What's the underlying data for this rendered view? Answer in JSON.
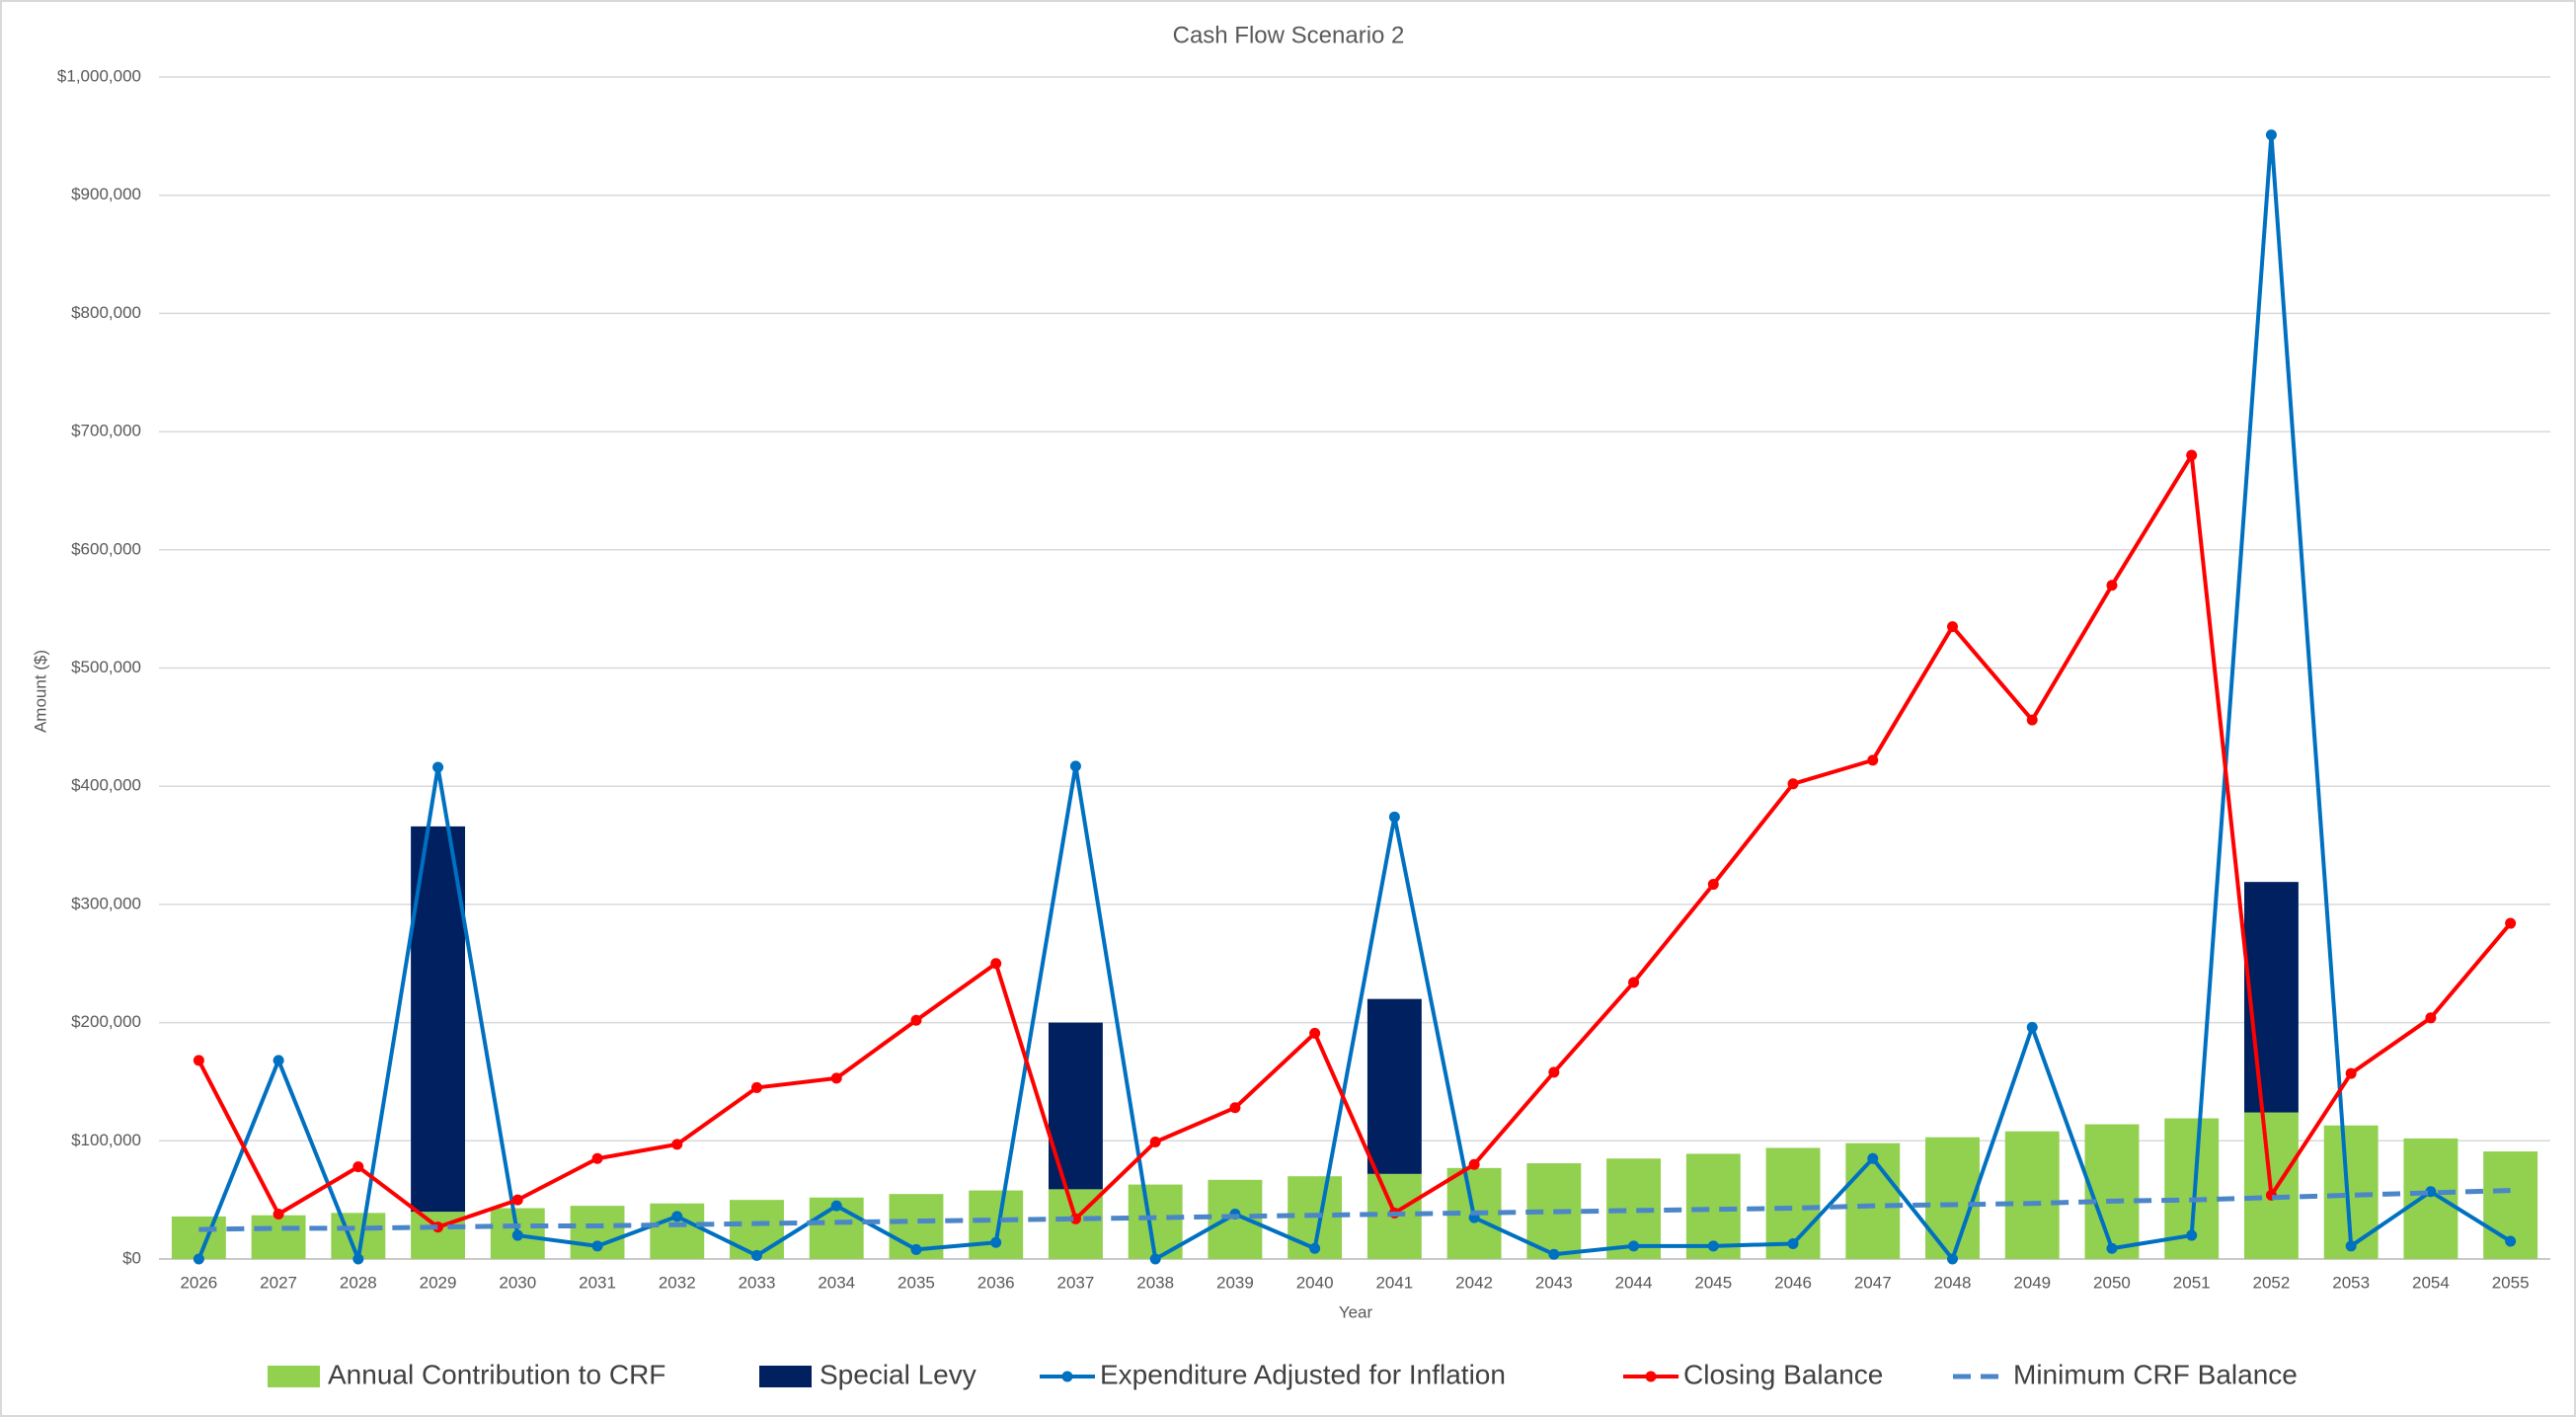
{
  "chart_data": {
    "type": "bar-line",
    "title": "Cash Flow Scenario 2",
    "x_label": "Year",
    "y_label": "Amount ($)",
    "categories": [
      "2026",
      "2027",
      "2028",
      "2029",
      "2030",
      "2031",
      "2032",
      "2033",
      "2034",
      "2035",
      "2036",
      "2037",
      "2038",
      "2039",
      "2040",
      "2041",
      "2042",
      "2043",
      "2044",
      "2045",
      "2046",
      "2047",
      "2048",
      "2049",
      "2050",
      "2051",
      "2052",
      "2053",
      "2054",
      "2055"
    ],
    "series": [
      {
        "name": "Annual Contribution to CRF",
        "kind": "bar",
        "color": "#92d050",
        "values": [
          36000,
          37000,
          39000,
          40000,
          43000,
          45000,
          47000,
          50000,
          52000,
          55000,
          58000,
          59000,
          63000,
          67000,
          70000,
          72000,
          77000,
          81000,
          85000,
          89000,
          94000,
          98000,
          103000,
          108000,
          114000,
          119000,
          124000,
          113000,
          102000,
          91000
        ]
      },
      {
        "name": "Special Levy",
        "kind": "stacked-bar",
        "color": "#002060",
        "values": [
          0,
          0,
          0,
          326000,
          0,
          0,
          0,
          0,
          0,
          0,
          0,
          141000,
          0,
          0,
          0,
          148000,
          0,
          0,
          0,
          0,
          0,
          0,
          0,
          0,
          0,
          0,
          195000,
          0,
          0,
          0
        ]
      },
      {
        "name": "Expenditure Adjusted for Inflation",
        "kind": "line",
        "color": "#0070c0",
        "values": [
          0,
          168000,
          0,
          416000,
          20000,
          11000,
          36000,
          3000,
          45000,
          8000,
          14000,
          417000,
          0,
          38000,
          9000,
          374000,
          35000,
          4000,
          11000,
          11000,
          13000,
          85000,
          0,
          196000,
          9000,
          20000,
          951000,
          11000,
          57000,
          15000
        ]
      },
      {
        "name": "Closing Balance",
        "kind": "line",
        "color": "#ff0000",
        "values": [
          168000,
          38000,
          78000,
          27000,
          50000,
          85000,
          97000,
          145000,
          153000,
          202000,
          250000,
          34000,
          99000,
          128000,
          191000,
          39000,
          80000,
          158000,
          234000,
          317000,
          402000,
          422000,
          535000,
          456000,
          570000,
          680000,
          54000,
          157000,
          204000,
          284000
        ]
      },
      {
        "name": "Minimum CRF Balance",
        "kind": "dashed-line",
        "color": "#4a86c8",
        "values": [
          25000,
          26000,
          26000,
          27000,
          28000,
          28000,
          29000,
          30000,
          31000,
          32000,
          33000,
          34000,
          35000,
          36000,
          37000,
          38000,
          39000,
          40000,
          41000,
          42000,
          43000,
          45000,
          46000,
          47000,
          49000,
          50000,
          52000,
          54000,
          56000,
          58000
        ]
      }
    ],
    "ylim": [
      0,
      1000000
    ],
    "yticks": [
      {
        "value": 0,
        "label": "$0"
      },
      {
        "value": 100000,
        "label": "$100,000"
      },
      {
        "value": 200000,
        "label": "$200,000"
      },
      {
        "value": 300000,
        "label": "$300,000"
      },
      {
        "value": 400000,
        "label": "$400,000"
      },
      {
        "value": 500000,
        "label": "$500,000"
      },
      {
        "value": 600000,
        "label": "$600,000"
      },
      {
        "value": 700000,
        "label": "$700,000"
      },
      {
        "value": 800000,
        "label": "$800,000"
      },
      {
        "value": 900000,
        "label": "$900,000"
      },
      {
        "value": 1000000,
        "label": "$1,000,000"
      }
    ],
    "grid": true,
    "legend": "bottom"
  }
}
